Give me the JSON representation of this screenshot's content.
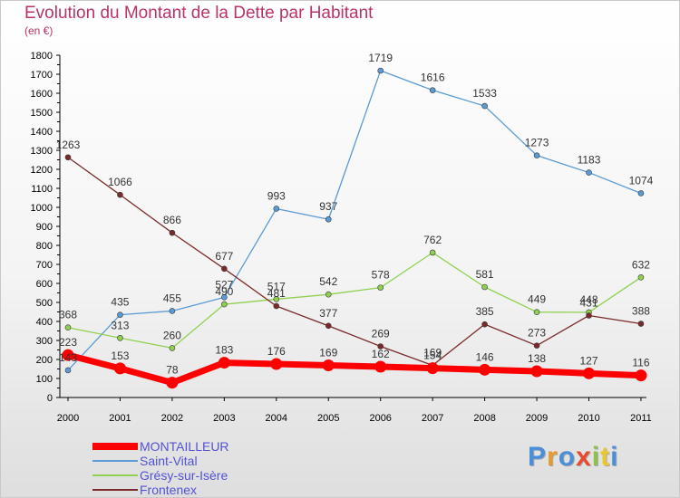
{
  "chart_data": {
    "type": "line",
    "title": "Evolution du Montant de la Dette par Habitant",
    "subtitle": "(en €)",
    "x": [
      "2000",
      "2001",
      "2002",
      "2003",
      "2004",
      "2005",
      "2006",
      "2007",
      "2008",
      "2009",
      "2010",
      "2011"
    ],
    "ylim": [
      0,
      1800
    ],
    "ytick_step": 100,
    "grid": false,
    "legend_position": "bottom-left",
    "series": [
      {
        "name": "MONTAILLEUR",
        "color": "#ff0000",
        "bold": true,
        "values": [
          223,
          153,
          78,
          183,
          176,
          169,
          162,
          154,
          146,
          138,
          127,
          116
        ]
      },
      {
        "name": "Saint-Vital",
        "color": "#5b9bd5",
        "values": [
          143,
          435,
          455,
          527,
          993,
          937,
          1719,
          1616,
          1533,
          1273,
          1183,
          1074
        ]
      },
      {
        "name": "Grésy-sur-Isère",
        "color": "#8fd14f",
        "values": [
          368,
          313,
          260,
          490,
          517,
          542,
          578,
          762,
          581,
          449,
          448,
          632
        ]
      },
      {
        "name": "Frontenex",
        "color": "#7a2a2a",
        "values": [
          1263,
          1066,
          866,
          677,
          481,
          377,
          269,
          169,
          385,
          273,
          431,
          388
        ]
      }
    ]
  },
  "logo": {
    "letters": [
      {
        "ch": "P",
        "color": "#4a8fd8"
      },
      {
        "ch": "r",
        "color": "#e89a2c"
      },
      {
        "ch": "o",
        "color": "#4a8fd8"
      },
      {
        "ch": "x",
        "color": "#e84a2c"
      },
      {
        "ch": "i",
        "color": "#8bc34a"
      },
      {
        "ch": "t",
        "color": "#e8c82c"
      },
      {
        "ch": "i",
        "color": "#4a8fd8"
      }
    ]
  }
}
